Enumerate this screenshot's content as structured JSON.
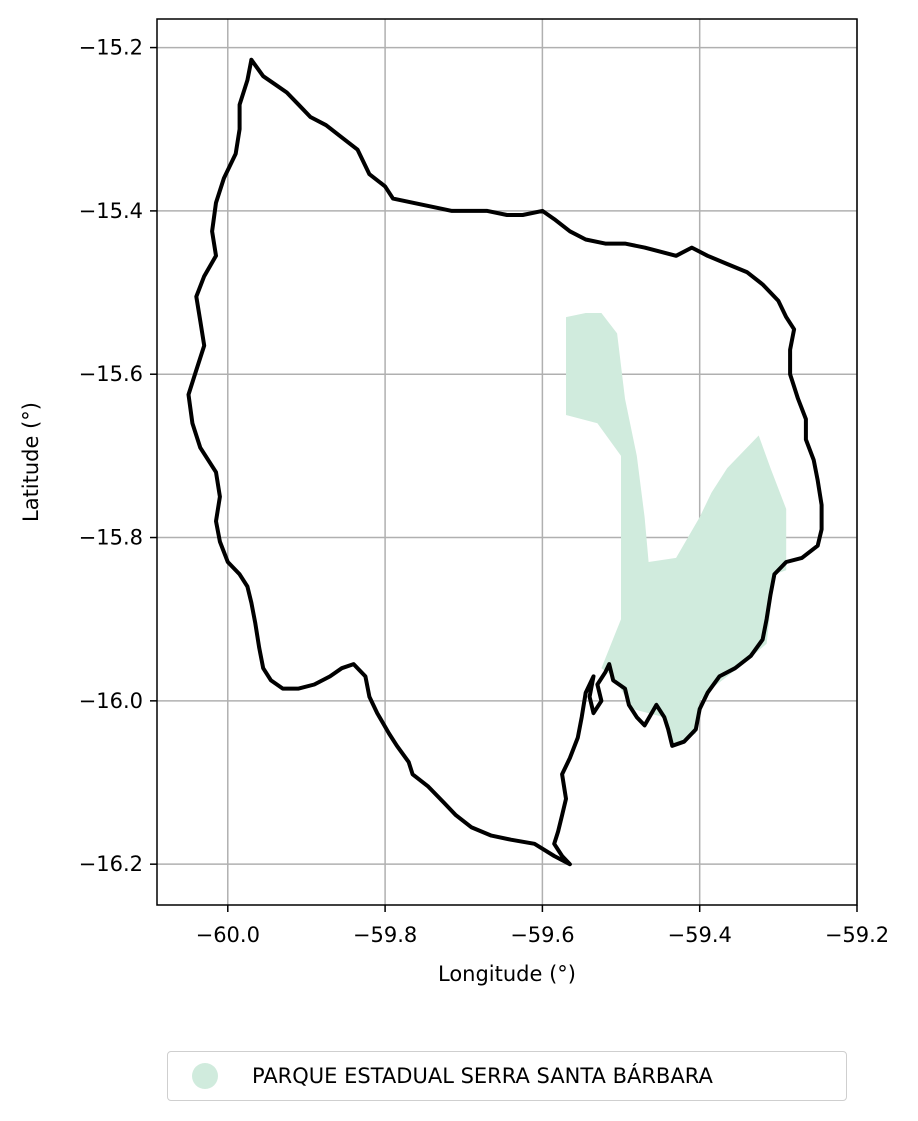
{
  "chart_data": {
    "type": "map",
    "xlabel": "Longitude (°)",
    "ylabel": "Latitude (°)",
    "xlim": [
      -60.09,
      -59.2
    ],
    "ylim": [
      -16.25,
      -15.165
    ],
    "x_ticks": [
      -60.0,
      -59.8,
      -59.6,
      -59.4,
      -59.2
    ],
    "x_tick_labels": [
      "−60.0",
      "−59.8",
      "−59.6",
      "−59.4",
      "−59.2"
    ],
    "y_ticks": [
      -15.2,
      -15.4,
      -15.6,
      -15.8,
      -16.0,
      -16.2
    ],
    "y_tick_labels": [
      "−15.2",
      "−15.4",
      "−15.6",
      "−15.8",
      "−16.0",
      "−16.2"
    ],
    "grid": true,
    "legend_position": "bottom-center",
    "boundary": {
      "color": "#000000",
      "coords": [
        [
          -59.97,
          -15.215
        ],
        [
          -59.955,
          -15.235
        ],
        [
          -59.94,
          -15.245
        ],
        [
          -59.925,
          -15.255
        ],
        [
          -59.91,
          -15.27
        ],
        [
          -59.895,
          -15.285
        ],
        [
          -59.875,
          -15.295
        ],
        [
          -59.855,
          -15.31
        ],
        [
          -59.835,
          -15.325
        ],
        [
          -59.82,
          -15.355
        ],
        [
          -59.8,
          -15.37
        ],
        [
          -59.79,
          -15.385
        ],
        [
          -59.765,
          -15.39
        ],
        [
          -59.74,
          -15.395
        ],
        [
          -59.715,
          -15.4
        ],
        [
          -59.695,
          -15.4
        ],
        [
          -59.67,
          -15.4
        ],
        [
          -59.645,
          -15.405
        ],
        [
          -59.625,
          -15.405
        ],
        [
          -59.6,
          -15.4
        ],
        [
          -59.585,
          -15.41
        ],
        [
          -59.565,
          -15.425
        ],
        [
          -59.545,
          -15.435
        ],
        [
          -59.52,
          -15.44
        ],
        [
          -59.495,
          -15.44
        ],
        [
          -59.47,
          -15.445
        ],
        [
          -59.45,
          -15.45
        ],
        [
          -59.43,
          -15.455
        ],
        [
          -59.41,
          -15.445
        ],
        [
          -59.39,
          -15.455
        ],
        [
          -59.365,
          -15.465
        ],
        [
          -59.34,
          -15.475
        ],
        [
          -59.32,
          -15.49
        ],
        [
          -59.3,
          -15.51
        ],
        [
          -59.29,
          -15.53
        ],
        [
          -59.28,
          -15.545
        ],
        [
          -59.285,
          -15.57
        ],
        [
          -59.285,
          -15.6
        ],
        [
          -59.275,
          -15.63
        ],
        [
          -59.265,
          -15.655
        ],
        [
          -59.265,
          -15.68
        ],
        [
          -59.255,
          -15.705
        ],
        [
          -59.25,
          -15.73
        ],
        [
          -59.245,
          -15.76
        ],
        [
          -59.245,
          -15.79
        ],
        [
          -59.25,
          -15.81
        ],
        [
          -59.27,
          -15.825
        ],
        [
          -59.29,
          -15.83
        ],
        [
          -59.305,
          -15.845
        ],
        [
          -59.31,
          -15.87
        ],
        [
          -59.315,
          -15.9
        ],
        [
          -59.32,
          -15.925
        ],
        [
          -59.335,
          -15.945
        ],
        [
          -59.355,
          -15.96
        ],
        [
          -59.375,
          -15.97
        ],
        [
          -59.39,
          -15.99
        ],
        [
          -59.4,
          -16.01
        ],
        [
          -59.405,
          -16.035
        ],
        [
          -59.42,
          -16.05
        ],
        [
          -59.435,
          -16.055
        ],
        [
          -59.44,
          -16.035
        ],
        [
          -59.445,
          -16.02
        ],
        [
          -59.455,
          -16.005
        ],
        [
          -59.47,
          -16.03
        ],
        [
          -59.48,
          -16.02
        ],
        [
          -59.49,
          -16.005
        ],
        [
          -59.495,
          -15.985
        ],
        [
          -59.51,
          -15.975
        ],
        [
          -59.515,
          -15.955
        ],
        [
          -59.52,
          -15.965
        ],
        [
          -59.53,
          -15.98
        ],
        [
          -59.525,
          -16.0
        ],
        [
          -59.535,
          -16.015
        ],
        [
          -59.54,
          -15.995
        ],
        [
          -59.535,
          -15.97
        ],
        [
          -59.545,
          -15.99
        ],
        [
          -59.55,
          -16.02
        ],
        [
          -59.555,
          -16.045
        ],
        [
          -59.565,
          -16.07
        ],
        [
          -59.575,
          -16.09
        ],
        [
          -59.57,
          -16.12
        ],
        [
          -59.575,
          -16.14
        ],
        [
          -59.58,
          -16.16
        ],
        [
          -59.585,
          -16.175
        ],
        [
          -59.575,
          -16.19
        ],
        [
          -59.565,
          -16.2
        ],
        [
          -59.585,
          -16.19
        ],
        [
          -59.61,
          -16.175
        ],
        [
          -59.64,
          -16.17
        ],
        [
          -59.665,
          -16.165
        ],
        [
          -59.69,
          -16.155
        ],
        [
          -59.71,
          -16.14
        ],
        [
          -59.725,
          -16.125
        ],
        [
          -59.745,
          -16.105
        ],
        [
          -59.765,
          -16.09
        ],
        [
          -59.77,
          -16.075
        ],
        [
          -59.785,
          -16.055
        ],
        [
          -59.795,
          -16.04
        ],
        [
          -59.81,
          -16.015
        ],
        [
          -59.82,
          -15.995
        ],
        [
          -59.825,
          -15.97
        ],
        [
          -59.84,
          -15.955
        ],
        [
          -59.855,
          -15.96
        ],
        [
          -59.87,
          -15.97
        ],
        [
          -59.89,
          -15.98
        ],
        [
          -59.91,
          -15.985
        ],
        [
          -59.93,
          -15.985
        ],
        [
          -59.945,
          -15.975
        ],
        [
          -59.955,
          -15.96
        ],
        [
          -59.96,
          -15.935
        ],
        [
          -59.965,
          -15.905
        ],
        [
          -59.97,
          -15.88
        ],
        [
          -59.975,
          -15.86
        ],
        [
          -59.985,
          -15.845
        ],
        [
          -60.0,
          -15.83
        ],
        [
          -60.01,
          -15.805
        ],
        [
          -60.015,
          -15.78
        ],
        [
          -60.01,
          -15.75
        ],
        [
          -60.015,
          -15.72
        ],
        [
          -60.035,
          -15.69
        ],
        [
          -60.045,
          -15.66
        ],
        [
          -60.05,
          -15.625
        ],
        [
          -60.04,
          -15.595
        ],
        [
          -60.03,
          -15.565
        ],
        [
          -60.035,
          -15.535
        ],
        [
          -60.04,
          -15.505
        ],
        [
          -60.03,
          -15.48
        ],
        [
          -60.015,
          -15.455
        ],
        [
          -60.02,
          -15.425
        ],
        [
          -60.015,
          -15.39
        ],
        [
          -60.005,
          -15.36
        ],
        [
          -59.99,
          -15.33
        ],
        [
          -59.985,
          -15.3
        ],
        [
          -59.985,
          -15.27
        ],
        [
          -59.975,
          -15.24
        ],
        [
          -59.97,
          -15.215
        ]
      ]
    },
    "park": {
      "name": "PARQUE ESTADUAL SERRA SANTA BÁRBARA",
      "color": "#d0ebdd",
      "coords": [
        [
          -59.57,
          -15.53
        ],
        [
          -59.545,
          -15.525
        ],
        [
          -59.525,
          -15.525
        ],
        [
          -59.505,
          -15.55
        ],
        [
          -59.495,
          -15.63
        ],
        [
          -59.48,
          -15.7
        ],
        [
          -59.47,
          -15.775
        ],
        [
          -59.465,
          -15.83
        ],
        [
          -59.43,
          -15.825
        ],
        [
          -59.4,
          -15.775
        ],
        [
          -59.385,
          -15.745
        ],
        [
          -59.365,
          -15.715
        ],
        [
          -59.345,
          -15.695
        ],
        [
          -59.325,
          -15.675
        ],
        [
          -59.31,
          -15.715
        ],
        [
          -59.29,
          -15.765
        ],
        [
          -59.29,
          -15.84
        ],
        [
          -59.305,
          -15.845
        ],
        [
          -59.315,
          -15.93
        ],
        [
          -59.345,
          -15.955
        ],
        [
          -59.385,
          -15.985
        ],
        [
          -59.4,
          -16.0
        ],
        [
          -59.405,
          -16.04
        ],
        [
          -59.435,
          -16.055
        ],
        [
          -59.445,
          -16.02
        ],
        [
          -59.485,
          -16.01
        ],
        [
          -59.51,
          -15.97
        ],
        [
          -59.525,
          -15.96
        ],
        [
          -59.5,
          -15.9
        ],
        [
          -59.5,
          -15.7
        ],
        [
          -59.53,
          -15.66
        ],
        [
          -59.57,
          -15.65
        ]
      ]
    }
  }
}
